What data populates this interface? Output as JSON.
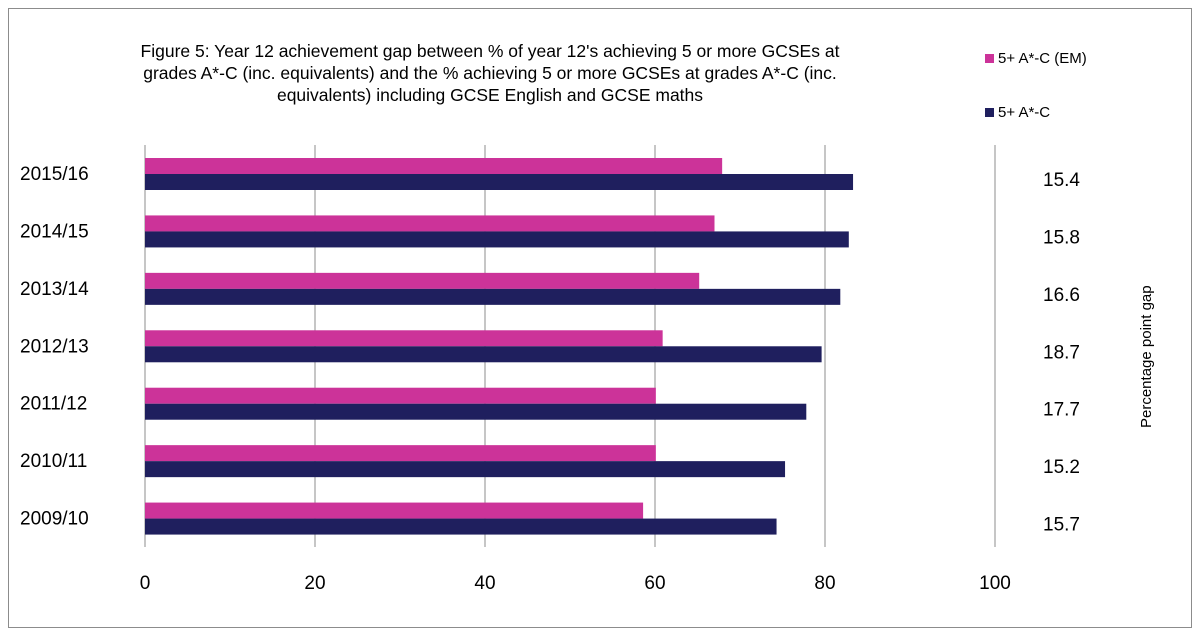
{
  "chart_data": {
    "type": "bar",
    "orientation": "horizontal",
    "title_lines": [
      "Figure 5: Year 12 achievement gap between % of year 12's achieving 5 or more GCSEs at",
      "grades A*-C  (inc. equivalents) and the % achieving 5 or more GCSEs at grades A*-C (inc.",
      "equivalents)  including GCSE English and GCSE maths"
    ],
    "categories": [
      "2015/16",
      "2014/15",
      "2013/14",
      "2012/13",
      "2011/12",
      "2010/11",
      "2009/10"
    ],
    "series": [
      {
        "name": "5+ A*-C (EM)",
        "color": "#cc3399",
        "values": [
          67.9,
          67.0,
          65.2,
          60.9,
          60.1,
          60.1,
          58.6
        ]
      },
      {
        "name": "5+ A*-C",
        "color": "#1f1f5e",
        "values": [
          83.3,
          82.8,
          81.8,
          79.6,
          77.8,
          75.3,
          74.3
        ]
      }
    ],
    "gap_values": [
      "15.4",
      "15.8",
      "16.6",
      "18.7",
      "17.7",
      "15.2",
      "15.7"
    ],
    "secondary_axis_label": "Percentage point gap",
    "xlim": [
      0,
      100
    ],
    "x_ticks": [
      "0",
      "20",
      "40",
      "60",
      "80",
      "100"
    ],
    "grid": "vertical",
    "legend_position": "top-right"
  }
}
